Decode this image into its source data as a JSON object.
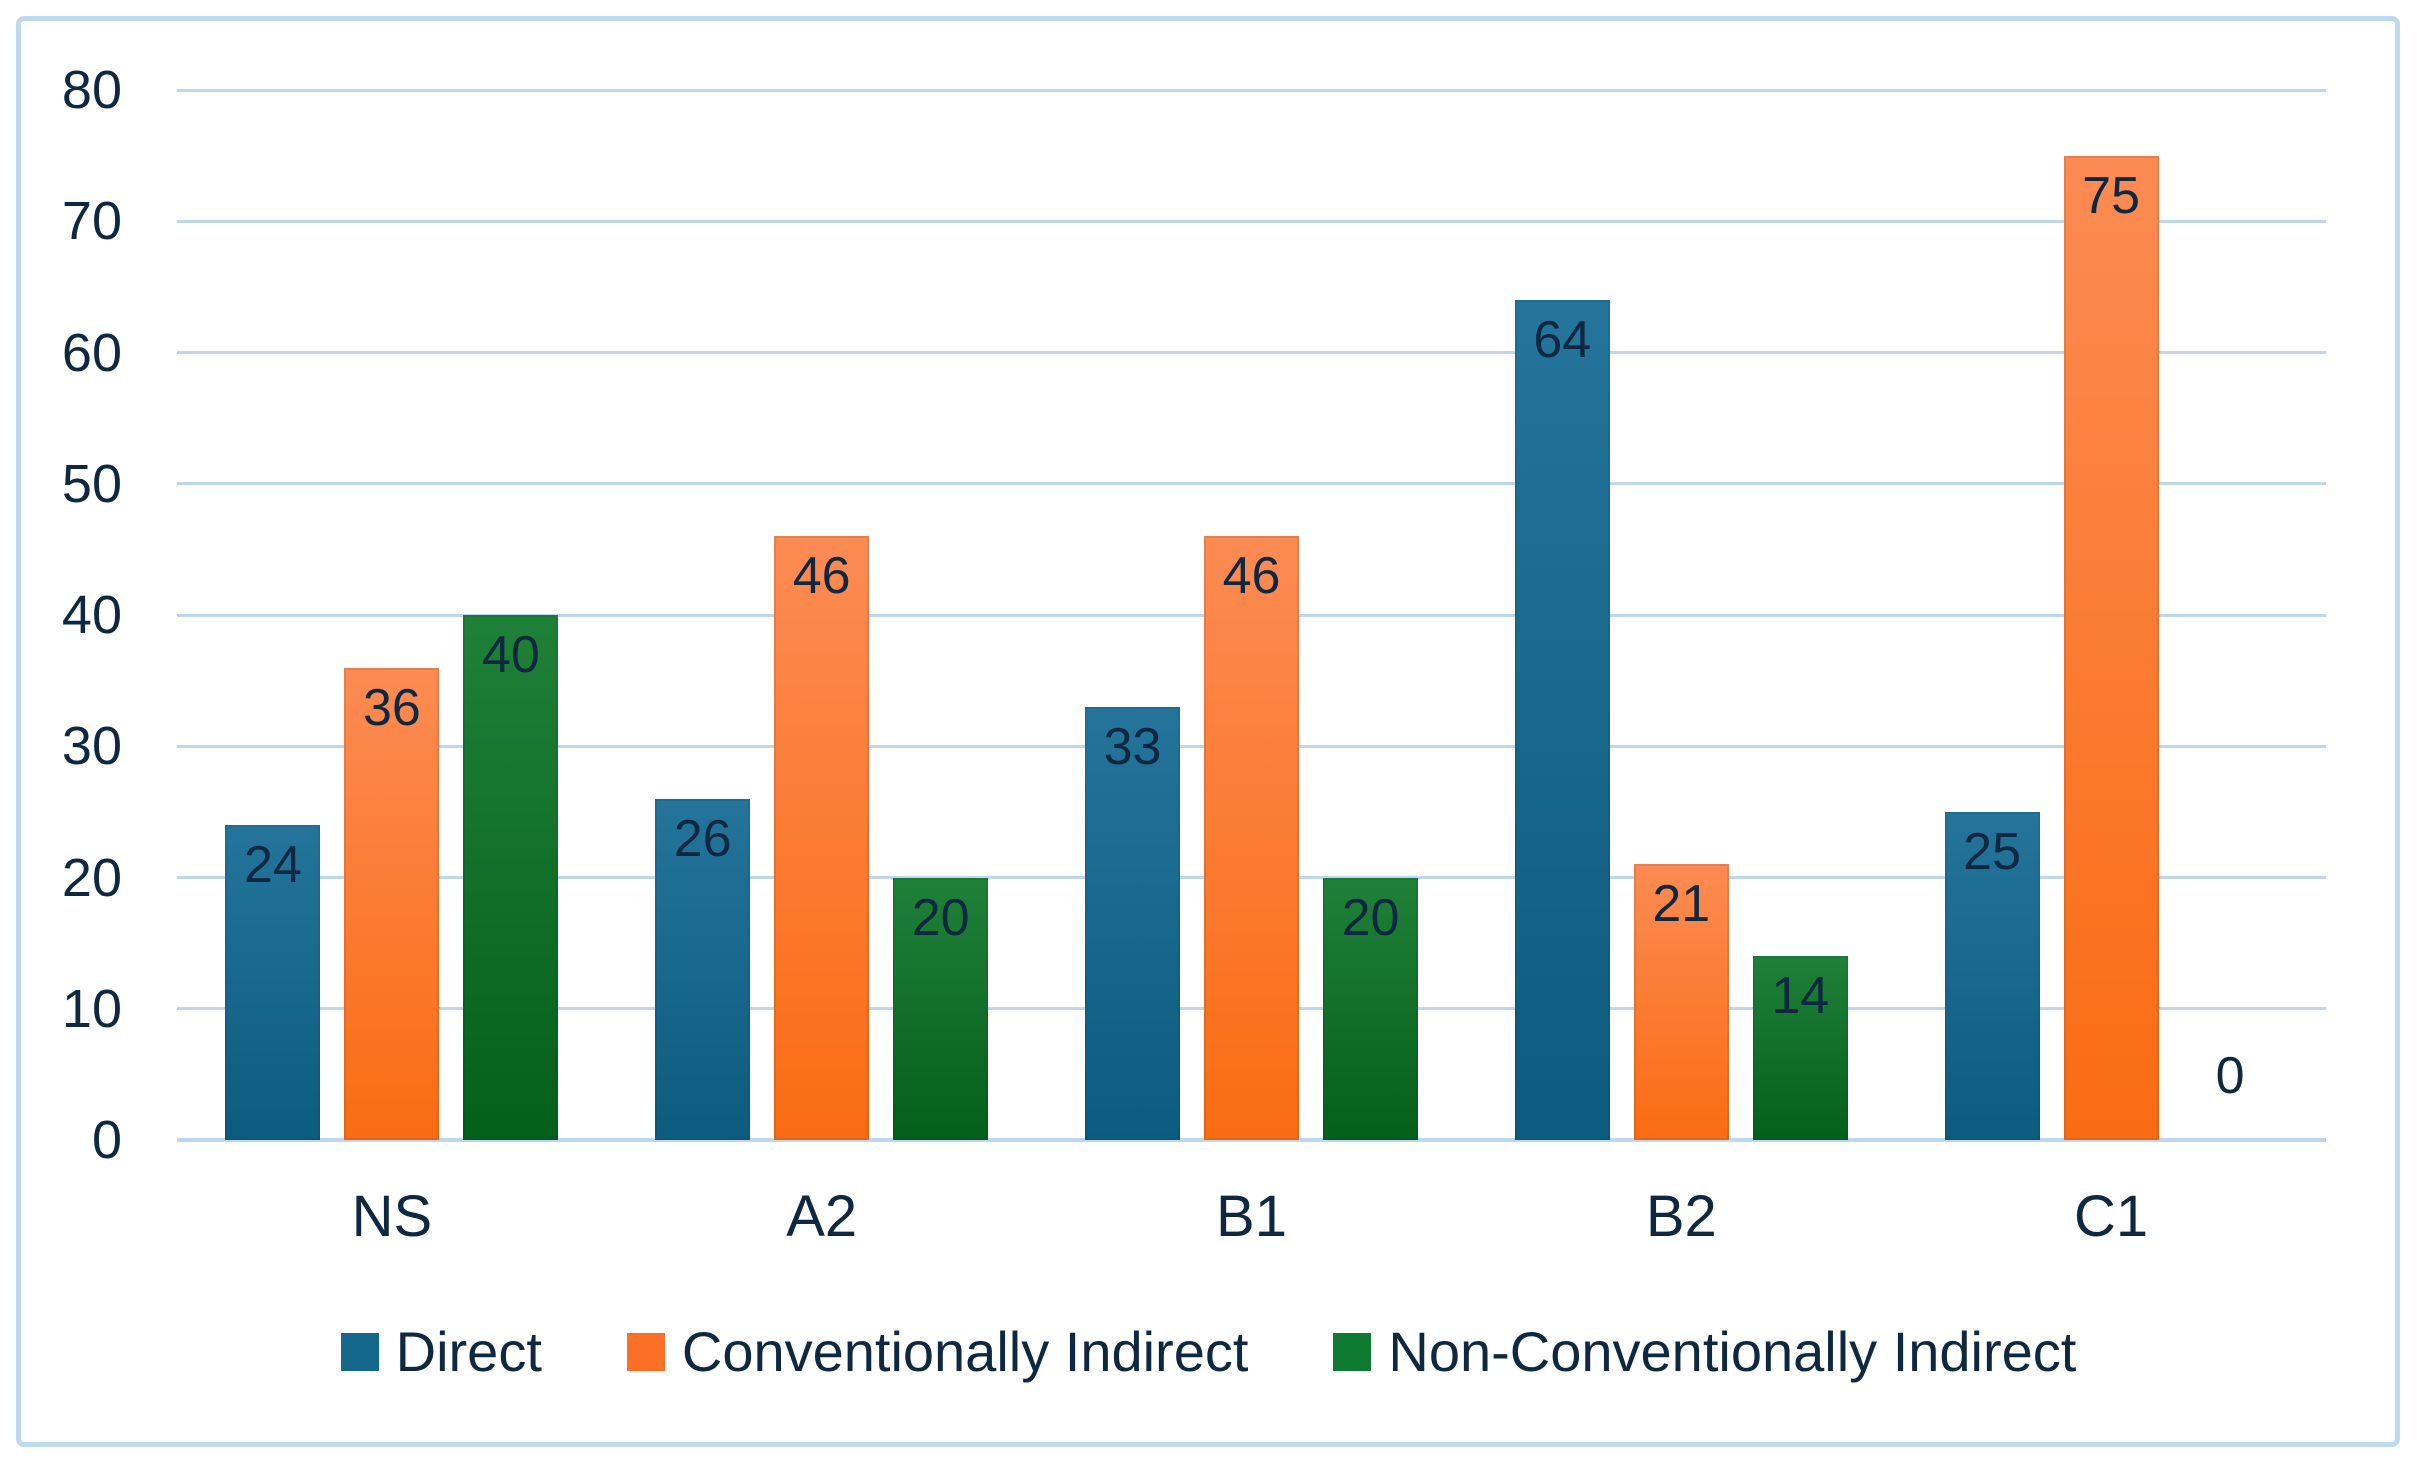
{
  "chart_data": {
    "type": "bar",
    "title": "",
    "xlabel": "",
    "ylabel": "",
    "categories": [
      "NS",
      "A2",
      "B1",
      "B2",
      "C1"
    ],
    "series": [
      {
        "name": "Direct",
        "values": [
          24,
          26,
          33,
          64,
          25
        ],
        "color_top": "#24749B",
        "color_bottom": "#0D5B7E",
        "legend_color": "#14688C"
      },
      {
        "name": "Conventionally Indirect",
        "values": [
          36,
          46,
          46,
          21,
          75
        ],
        "color_top": "#FC8B53",
        "color_bottom": "#FA6C13",
        "legend_color": "#FB7026"
      },
      {
        "name": "Non-Conventionally Indirect",
        "values": [
          40,
          20,
          20,
          14,
          0
        ],
        "color_top": "#1F8038",
        "color_bottom": "#045F1A",
        "legend_color": "#0F7A31"
      }
    ],
    "y_axis": {
      "min": 0,
      "max": 80,
      "step": 10,
      "tick_labels": [
        "0",
        "10",
        "20",
        "30",
        "40",
        "50",
        "60",
        "70",
        "80"
      ]
    },
    "data_labels_visible": true,
    "grid": true,
    "legend_position": "bottom"
  },
  "colors": {
    "text": "#0E2841",
    "gridline": "#BDD7EE",
    "frame_border": "#BDD9F2",
    "background": "#FFFFFF"
  }
}
